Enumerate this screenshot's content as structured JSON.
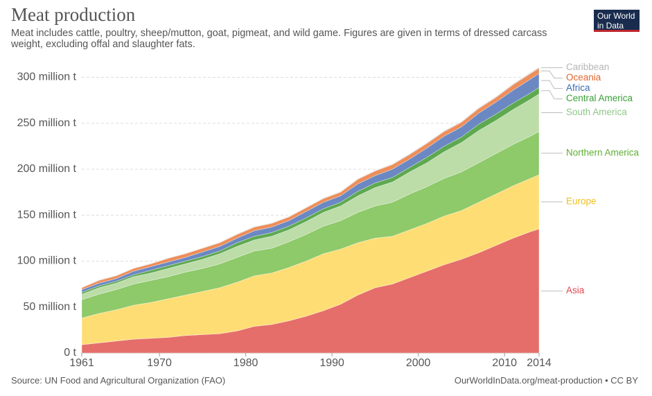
{
  "chart_data": {
    "type": "stacked-area",
    "title": "Meat production",
    "subtitle": "Meat includes cattle, poultry, sheep/mutton, goat, pigmeat, and wild game. Figures are given in terms of dressed carcass weight, excluding offal and slaughter fats.",
    "logo": "Our World in Data",
    "source": "Source: UN Food and Agricultural Organization (FAO)",
    "url": "OurWorldInData.org/meat-production • CC BY",
    "x": [
      1961,
      1963,
      1965,
      1967,
      1969,
      1971,
      1973,
      1975,
      1977,
      1979,
      1981,
      1983,
      1985,
      1987,
      1989,
      1991,
      1993,
      1995,
      1997,
      1999,
      2001,
      2003,
      2005,
      2007,
      2009,
      2011,
      2013,
      2014
    ],
    "xlim": [
      1961,
      2014
    ],
    "xticks": [
      1961,
      1970,
      1980,
      1990,
      2000,
      2010,
      2014
    ],
    "ylim": [
      0,
      320
    ],
    "yticks": [
      {
        "value": 0,
        "label": "0 t"
      },
      {
        "value": 50,
        "label": "50 million t"
      },
      {
        "value": 100,
        "label": "100 million t"
      },
      {
        "value": 150,
        "label": "150 million t"
      },
      {
        "value": 200,
        "label": "200 million t"
      },
      {
        "value": 250,
        "label": "250 million t"
      },
      {
        "value": 300,
        "label": "300 million t"
      }
    ],
    "grid": true,
    "series": [
      {
        "name": "Asia",
        "color": "#e56e6a",
        "label_color": "#e0474c",
        "values": [
          9,
          11,
          13,
          15,
          16,
          17,
          19,
          20,
          21,
          24,
          29,
          31,
          35,
          40,
          46,
          53,
          63,
          71,
          75,
          82,
          89,
          96,
          102,
          109,
          117,
          125,
          132,
          135
        ]
      },
      {
        "name": "Europe",
        "color": "#fedd74",
        "label_color": "#f0c020",
        "values": [
          29,
          32,
          34,
          37,
          39,
          42,
          44,
          47,
          50,
          53,
          55,
          56,
          58,
          60,
          62,
          60,
          57,
          54,
          52,
          52,
          52,
          53,
          53,
          55,
          56,
          57,
          58,
          59
        ]
      },
      {
        "name": "Northern America",
        "color": "#8ec96a",
        "label_color": "#5fae36",
        "values": [
          20,
          21,
          22,
          23,
          24,
          24,
          25,
          25,
          26,
          27,
          27,
          27,
          28,
          29,
          30,
          31,
          33,
          35,
          37,
          39,
          40,
          41,
          42,
          43,
          44,
          45,
          46,
          47
        ]
      },
      {
        "name": "South America",
        "color": "#bcdca8",
        "label_color": "#8fc78a",
        "values": [
          6,
          7,
          7,
          8,
          8,
          9,
          9,
          10,
          11,
          12,
          12,
          13,
          13,
          14,
          15,
          16,
          18,
          20,
          22,
          24,
          26,
          29,
          32,
          35,
          36,
          38,
          40,
          41
        ]
      },
      {
        "name": "Central America",
        "color": "#5ea950",
        "label_color": "#39a03a",
        "values": [
          2,
          2,
          2,
          2,
          3,
          3,
          3,
          3,
          3,
          4,
          4,
          4,
          4,
          4,
          4,
          4,
          5,
          5,
          5,
          5,
          6,
          6,
          6,
          7,
          7,
          7,
          7,
          7
        ]
      },
      {
        "name": "Africa",
        "color": "#6b88c2",
        "label_color": "#3a6bb3",
        "values": [
          3,
          3,
          3,
          4,
          4,
          4,
          4,
          5,
          5,
          5,
          6,
          6,
          6,
          7,
          7,
          7,
          8,
          8,
          9,
          9,
          10,
          11,
          11,
          12,
          13,
          14,
          15,
          15
        ]
      },
      {
        "name": "Oceania",
        "color": "#ee8e5a",
        "label_color": "#e0652d",
        "values": [
          2,
          3,
          3,
          3,
          3,
          4,
          4,
          4,
          4,
          4,
          4,
          4,
          4,
          4,
          4,
          4,
          5,
          5,
          5,
          5,
          5,
          5,
          5,
          5,
          5,
          6,
          6,
          6
        ]
      },
      {
        "name": "Caribbean",
        "color": "#c4c4c4",
        "label_color": "#b5b5b5",
        "values": [
          0.5,
          0.5,
          0.5,
          0.5,
          0.5,
          0.5,
          0.5,
          0.5,
          0.6,
          0.6,
          0.6,
          0.6,
          0.6,
          0.6,
          0.7,
          0.7,
          0.7,
          0.7,
          0.7,
          0.8,
          0.8,
          0.8,
          0.8,
          0.9,
          0.9,
          0.9,
          1,
          1
        ]
      }
    ]
  }
}
